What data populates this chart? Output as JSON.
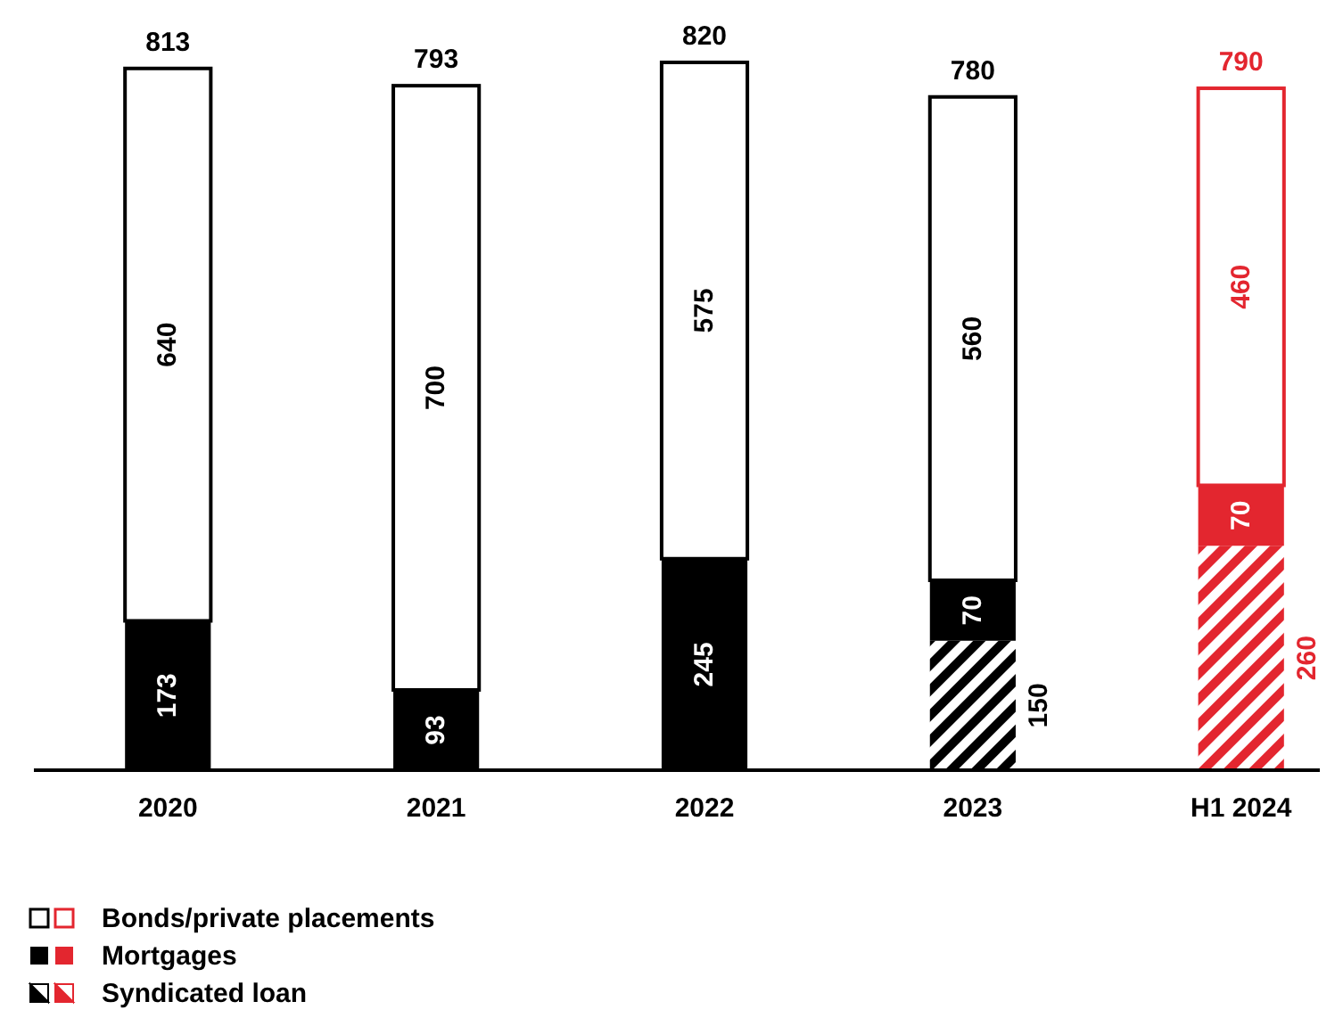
{
  "chart_data": {
    "type": "bar",
    "stacked": true,
    "data_labels": true,
    "legend": "bottom",
    "categories": [
      "2020",
      "2021",
      "2022",
      "2023",
      "H1 2024"
    ],
    "series": [
      {
        "name": "Syndicated loan",
        "type": "bar",
        "color": "#000000",
        "colors": [
          "#000000",
          "#000000",
          "#000000",
          "#000000",
          "#e3262f"
        ],
        "values": [
          null,
          null,
          null,
          150,
          260
        ]
      },
      {
        "name": "Mortgages",
        "type": "bar",
        "color": "#000000",
        "colors": [
          "#000000",
          "#000000",
          "#000000",
          "#000000",
          "#e3262f"
        ],
        "values": [
          173,
          93,
          245,
          70,
          70
        ]
      },
      {
        "name": "Bonds/private placements",
        "type": "bar",
        "color": "#ffffff",
        "colors": [
          "#ffffff",
          "#ffffff",
          "#ffffff",
          "#ffffff",
          "#ffffff"
        ],
        "values": [
          640,
          700,
          575,
          560,
          460
        ]
      }
    ],
    "totals": [
      "813",
      "793",
      "820",
      "780",
      "790"
    ]
  }
}
